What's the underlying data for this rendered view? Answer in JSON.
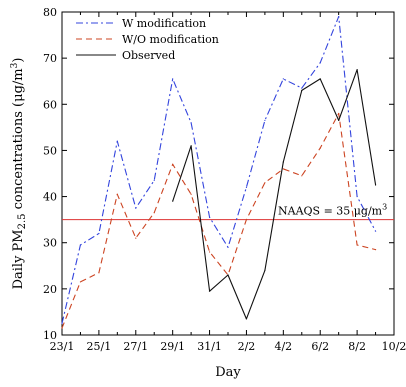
{
  "chart_data": {
    "type": "line",
    "xlabel": "Day",
    "ylabel_parts": {
      "pre": "Daily PM",
      "sub": "2.5",
      "mid": " concentrations (μg/m",
      "sup": "3",
      "post": ")"
    },
    "x_categories": [
      "23/1",
      "24/1",
      "25/1",
      "26/1",
      "27/1",
      "28/1",
      "29/1",
      "30/1",
      "31/1",
      "1/2",
      "2/2",
      "3/2",
      "4/2",
      "5/2",
      "6/2",
      "7/2",
      "8/2",
      "9/2",
      "10/2"
    ],
    "x_tick_labels": [
      "23/1",
      "25/1",
      "27/1",
      "29/1",
      "31/1",
      "2/2",
      "4/2",
      "6/2",
      "8/2",
      "10/2"
    ],
    "ylim": [
      10,
      80
    ],
    "y_ticks": [
      10,
      20,
      30,
      40,
      50,
      60,
      70,
      80
    ],
    "series": [
      {
        "name": "W modification",
        "color": "#3344dd",
        "style": "dashdot",
        "x": [
          "23/1",
          "24/1",
          "25/1",
          "26/1",
          "27/1",
          "28/1",
          "29/1",
          "30/1",
          "31/1",
          "1/2",
          "2/2",
          "3/2",
          "4/2",
          "5/2",
          "6/2",
          "7/2",
          "8/2",
          "9/2"
        ],
        "y": [
          12.5,
          29.5,
          32,
          52,
          37.5,
          43.5,
          65.5,
          56,
          35.5,
          29,
          42,
          56.5,
          65.5,
          63.5,
          69,
          79,
          40,
          32.5
        ]
      },
      {
        "name": "W/O modification",
        "color": "#cc4422",
        "style": "dashed",
        "x": [
          "23/1",
          "24/1",
          "25/1",
          "26/1",
          "27/1",
          "28/1",
          "29/1",
          "30/1",
          "31/1",
          "1/2",
          "2/2",
          "3/2",
          "4/2",
          "5/2",
          "6/2",
          "7/2",
          "8/2",
          "9/2"
        ],
        "y": [
          11.5,
          21.5,
          23.5,
          40.5,
          31,
          36.5,
          47,
          40.5,
          28,
          23,
          35,
          43,
          46,
          44.5,
          50.5,
          58,
          29.5,
          28.5
        ]
      },
      {
        "name": "Observed",
        "color": "#111111",
        "style": "solid",
        "x": [
          "29/1",
          "30/1",
          "31/1",
          "1/2",
          "2/2",
          "3/2",
          "4/2",
          "5/2",
          "6/2",
          "7/2",
          "8/2",
          "9/2"
        ],
        "y": [
          39,
          51,
          19.5,
          23,
          13.5,
          24,
          47.5,
          63,
          65.5,
          56.5,
          67.5,
          42.5
        ]
      }
    ],
    "reference_line": {
      "y": 35,
      "color": "#dd3333"
    },
    "annotation": {
      "text": "NAAQS = 35 μg/m",
      "sup": "3"
    },
    "legend_position": "top-left",
    "grid": false
  }
}
